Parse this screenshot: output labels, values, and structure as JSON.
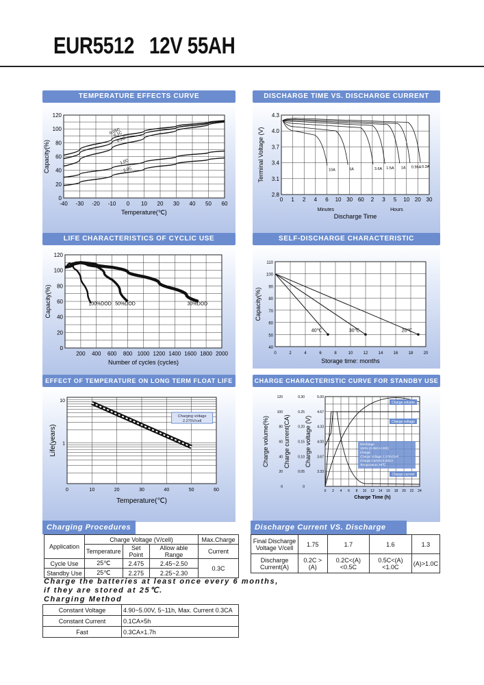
{
  "title": "EUR5512   12V 55AH",
  "panels": {
    "temp_effects": {
      "header": "TEMPERATURE EFFECTS CURVE"
    },
    "discharge_time": {
      "header": "DISCHARGE TIME VS. DISCHARGE CURRENT (25℃)"
    },
    "life_cyclic": {
      "header": "LIFE CHARACTERISTICS OF CYCLIC USE"
    },
    "self_discharge": {
      "header": "SELF-DISCHARGE CHARACTERISTIC"
    },
    "float_life": {
      "header": "EFFECT OF TEMPERATURE ON LONG TERM FLOAT LIFE"
    },
    "charge_curve": {
      "header": "CHARGE CHARACTERISTIC CURVE FOR STANDBY USE"
    }
  },
  "chart_data": [
    {
      "id": "temp_effects",
      "type": "line",
      "xlabel": "Temperature(℃)",
      "ylabel": "Capacity(%)",
      "xlim": [
        -40,
        60
      ],
      "ylim": [
        0,
        120
      ],
      "x_ticks": [
        -40,
        -30,
        -20,
        -10,
        0,
        10,
        20,
        30,
        40,
        50,
        60
      ],
      "y_ticks": [
        0,
        20,
        40,
        60,
        80,
        100,
        120
      ],
      "grid": true,
      "series": [
        {
          "name": "0.05C",
          "x": [
            -40,
            -20,
            0,
            20,
            40,
            60
          ],
          "y": [
            62,
            78,
            92,
            101,
            107,
            112
          ]
        },
        {
          "name": "0.1C",
          "x": [
            -40,
            -20,
            0,
            20,
            40,
            60
          ],
          "y": [
            57,
            73,
            88,
            98,
            105,
            111
          ]
        },
        {
          "name": "0.2C",
          "x": [
            -40,
            -20,
            0,
            20,
            40,
            60
          ],
          "y": [
            46,
            64,
            80,
            93,
            102,
            110
          ]
        },
        {
          "name": "1.0C",
          "x": [
            -40,
            -20,
            0,
            20,
            40,
            60
          ],
          "y": [
            30,
            39,
            48,
            56,
            63,
            68
          ]
        },
        {
          "name": "2.0C",
          "x": [
            -40,
            -20,
            0,
            20,
            40,
            60
          ],
          "y": [
            18,
            27,
            37,
            46,
            53,
            58
          ]
        }
      ]
    },
    {
      "id": "discharge_time",
      "type": "line",
      "xlabel": "Discharge Time",
      "ylabel": "Terminal Voltage (V)",
      "x_ticks": [
        "0",
        "1",
        "2",
        "4",
        "6",
        "10",
        "30",
        "60",
        "2",
        "3",
        "5",
        "10",
        "20",
        "30"
      ],
      "x_groups": [
        "Minutes",
        "Hours"
      ],
      "y_ticks": [
        2.8,
        3.1,
        3.4,
        3.7,
        4.0,
        4.3
      ],
      "ylim": [
        2.8,
        4.3
      ],
      "grid": true,
      "series": [
        {
          "name": "10A"
        },
        {
          "name": "6A"
        },
        {
          "name": "3.6A"
        },
        {
          "name": "1.5A"
        },
        {
          "name": "1A"
        },
        {
          "name": "0.96A"
        },
        {
          "name": "0.3A"
        }
      ]
    },
    {
      "id": "life_cyclic",
      "type": "line",
      "xlabel": "Number of cycles (cycles)",
      "ylabel": "Capacity(%)",
      "xlim": [
        0,
        2000
      ],
      "ylim": [
        0,
        120
      ],
      "x_ticks": [
        200,
        400,
        600,
        800,
        1000,
        1200,
        1400,
        1600,
        1800,
        2000
      ],
      "y_ticks": [
        0,
        20,
        40,
        60,
        80,
        100,
        120
      ],
      "grid": true,
      "series": [
        {
          "name": "100%DOD",
          "x": [
            0,
            60,
            150,
            250,
            330
          ],
          "y": [
            104,
            109,
            100,
            80,
            58
          ]
        },
        {
          "name": "50%DOD",
          "x": [
            0,
            150,
            400,
            600,
            800
          ],
          "y": [
            104,
            110,
            105,
            88,
            60
          ]
        },
        {
          "name": "30%DOD",
          "x": [
            0,
            200,
            600,
            1000,
            1400,
            1700
          ],
          "y": [
            104,
            110,
            104,
            92,
            76,
            60
          ]
        }
      ]
    },
    {
      "id": "self_discharge",
      "type": "line",
      "xlabel": "Storage time: months",
      "ylabel": "Capacity(%)",
      "xlim": [
        0,
        20
      ],
      "ylim": [
        40,
        110
      ],
      "x_ticks": [
        0,
        2,
        4,
        6,
        8,
        10,
        12,
        14,
        16,
        18,
        20
      ],
      "y_ticks": [
        40,
        50,
        60,
        70,
        80,
        90,
        100,
        110
      ],
      "grid": true,
      "series": [
        {
          "name": "40℃",
          "x": [
            0,
            7
          ],
          "y": [
            100,
            50
          ]
        },
        {
          "name": "30℃",
          "x": [
            0,
            12
          ],
          "y": [
            100,
            50
          ]
        },
        {
          "name": "20℃",
          "x": [
            0,
            19
          ],
          "y": [
            100,
            50
          ]
        }
      ]
    },
    {
      "id": "float_life",
      "type": "line",
      "xlabel": "Temperature(℃)",
      "ylabel": "Life(years)",
      "xlim": [
        0,
        60
      ],
      "x_ticks": [
        0,
        10,
        20,
        30,
        40,
        50,
        60
      ],
      "y_ticks": [
        1,
        10
      ],
      "y_scale": "log",
      "grid": true,
      "annotation": "Charging voltage 2.275V/cell",
      "series": [
        {
          "name": "float life",
          "x": [
            10,
            50
          ],
          "y": [
            8.5,
            0.8
          ]
        }
      ]
    },
    {
      "id": "charge_curve",
      "type": "line",
      "xlabel": "Charge Time (h)",
      "ylabels": [
        "Charge volume(%)",
        "Charge current(CA)",
        "Charge voltage (V)"
      ],
      "x_ticks": [
        0,
        2,
        4,
        6,
        8,
        10,
        12,
        14,
        16,
        18,
        20,
        22,
        24
      ],
      "y_ticks_volume": [
        0,
        20,
        40,
        60,
        80,
        100,
        120
      ],
      "y_ticks_current": [
        "0",
        "0.05",
        "0.10",
        "0.15",
        "0.20",
        "0.25",
        "0.30"
      ],
      "y_ticks_voltage": [
        "3.33",
        "3.67",
        "4.00",
        "4.33",
        "4.67",
        "5.00"
      ],
      "grid": true,
      "labels": {
        "volume": "Charge volume",
        "voltage": "Charge voltage",
        "current": "Charge current"
      },
      "legend": [
        "Discharge",
        "100% (0.05CA×20h)",
        "Charge",
        "Charge Voltage 2.275V/cell",
        "Charge Current 0.20CA",
        "Temperature 25℃"
      ]
    }
  ],
  "charging_procedures": {
    "header": "Charging Procedures",
    "col_application": "Application",
    "col_charge_voltage": "Charge Voltage (V/cell)",
    "col_max_charge": "Max.Charge",
    "col_current": "Current",
    "sub_temperature": "Temperature",
    "sub_set_point": "Set Point",
    "sub_allowable": "Allow able Range",
    "rows": [
      {
        "app": "Cycle Use",
        "temp": "25℃",
        "set": "2.475",
        "range": "2.45~2.50"
      },
      {
        "app": "Standby Use",
        "temp": "25℃",
        "set": "2.275",
        "range": "2.25~2.30"
      }
    ],
    "max_current": "0.3C"
  },
  "discharge_vs_voltage": {
    "header": "Discharge Current VS. Discharge Voltage",
    "row1_label": "Final Discharge Voltage V/cell",
    "row1": [
      "1.75",
      "1.7",
      "1.6",
      "1.3"
    ],
    "row2_label": "Discharge Current(A)",
    "row2": [
      "0.2C > (A)",
      "0.2C<(A)<0.5C",
      "0.5C<(A)<1.0C",
      "(A)>1.0C"
    ]
  },
  "note": "Charge the batteries at least once every 6 months,\nif they are stored at 25℃.",
  "charging_method": {
    "header": "Charging Method",
    "rows": [
      {
        "label": "Constant Voltage",
        "value": "4.90~5.00V, 5~11h, Max. Current 0.3CA"
      },
      {
        "label": "Constant Current",
        "value": "0.1CA×5h"
      },
      {
        "label": "Fast",
        "value": "0.3CA×1.7h"
      }
    ]
  }
}
